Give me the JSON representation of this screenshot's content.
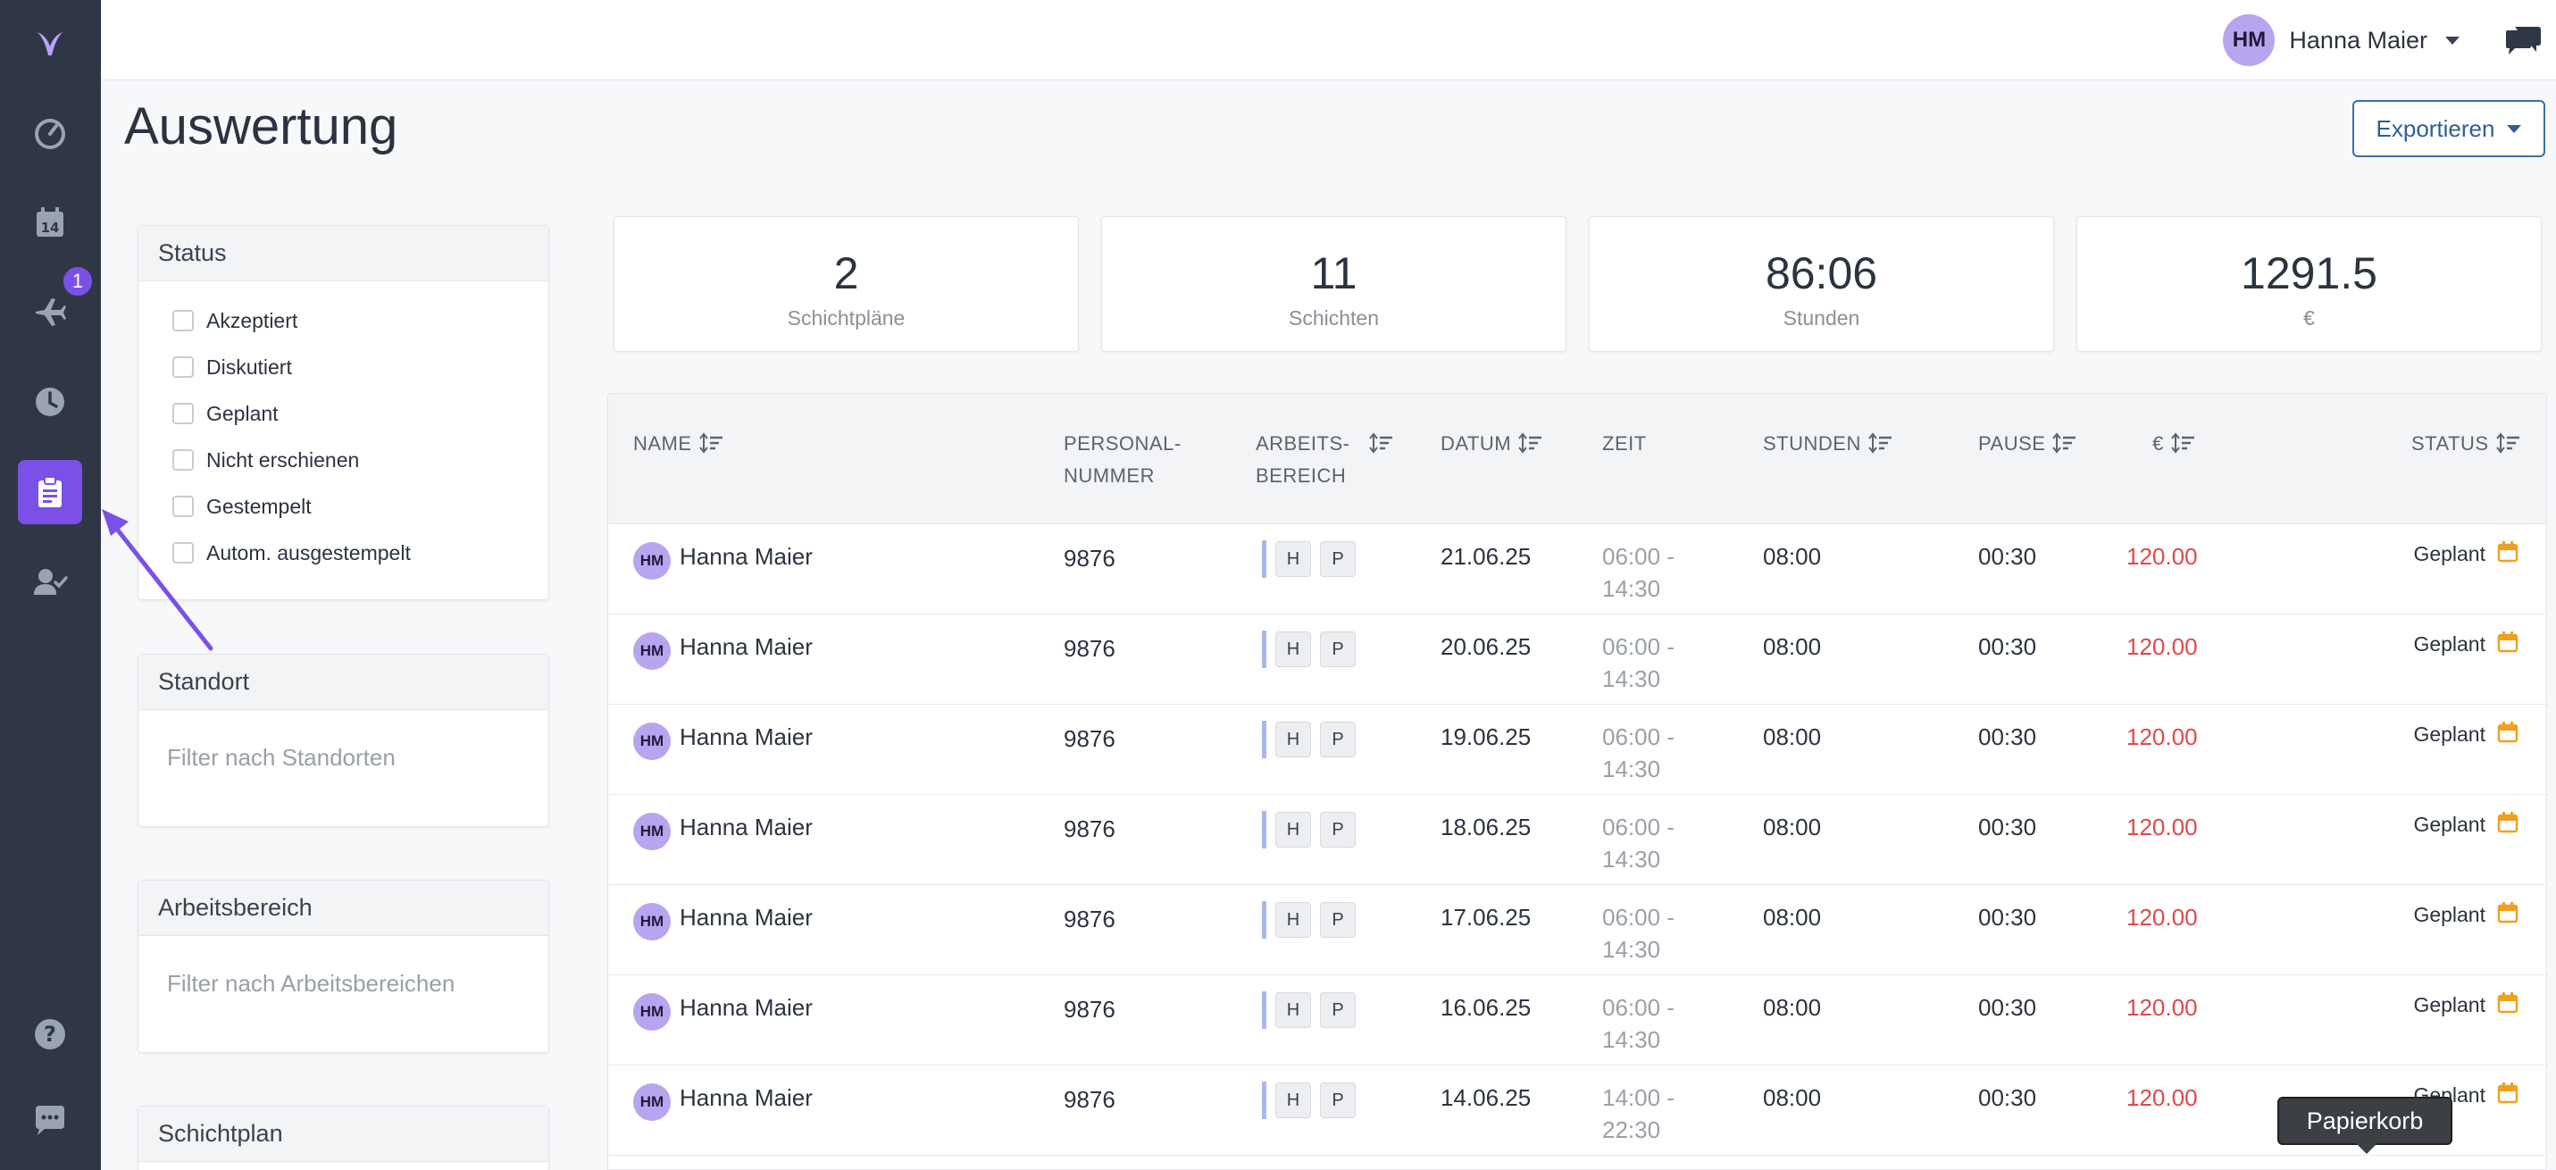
{
  "app": {
    "user_initials": "HM",
    "user_name": "Hanna Maier"
  },
  "sidebar": {
    "items": [
      {
        "name": "logo",
        "icon": "logo-icon"
      },
      {
        "name": "dashboard",
        "icon": "gauge-icon"
      },
      {
        "name": "calendar",
        "icon": "calendar-icon",
        "label": "14"
      },
      {
        "name": "absence",
        "icon": "plane-icon",
        "badge": "1"
      },
      {
        "name": "time",
        "icon": "clock-icon"
      },
      {
        "name": "reports",
        "icon": "clipboard-icon",
        "active": true
      },
      {
        "name": "users",
        "icon": "user-check-icon"
      },
      {
        "name": "help",
        "icon": "question-icon"
      },
      {
        "name": "chat",
        "icon": "chat-icon"
      }
    ]
  },
  "page": {
    "title": "Auswertung",
    "export_label": "Exportieren"
  },
  "filters": {
    "status": {
      "title": "Status",
      "options": [
        "Akzeptiert",
        "Diskutiert",
        "Geplant",
        "Nicht erschienen",
        "Gestempelt",
        "Autom. ausgestempelt"
      ]
    },
    "location": {
      "title": "Standort",
      "placeholder": "Filter nach Standorten"
    },
    "area": {
      "title": "Arbeitsbereich",
      "placeholder": "Filter nach Arbeitsbereichen"
    },
    "schedule": {
      "title": "Schichtplan"
    }
  },
  "stats": [
    {
      "value": "2",
      "label": "Schichtpläne"
    },
    {
      "value": "11",
      "label": "Schichten"
    },
    {
      "value": "86:06",
      "label": "Stunden"
    },
    {
      "value": "1291.5",
      "label": "€"
    }
  ],
  "table": {
    "headers": {
      "name": "NAME",
      "personal_1": "PERSONAL-",
      "personal_2": "NUMMER",
      "area_1": "ARBEITS-",
      "area_2": "BEREICH",
      "date": "DATUM",
      "time": "ZEIT",
      "hours": "STUNDEN",
      "pause": "PAUSE",
      "euro": "€",
      "status": "STATUS"
    },
    "rows": [
      {
        "initials": "HM",
        "name": "Hanna Maier",
        "number": "9876",
        "tag1": "H",
        "tag2": "P",
        "date": "21.06.25",
        "time_1": "06:00 -",
        "time_2": "14:30",
        "hours": "08:00",
        "pause": "00:30",
        "euro": "120.00",
        "status": "Geplant"
      },
      {
        "initials": "HM",
        "name": "Hanna Maier",
        "number": "9876",
        "tag1": "H",
        "tag2": "P",
        "date": "20.06.25",
        "time_1": "06:00 -",
        "time_2": "14:30",
        "hours": "08:00",
        "pause": "00:30",
        "euro": "120.00",
        "status": "Geplant"
      },
      {
        "initials": "HM",
        "name": "Hanna Maier",
        "number": "9876",
        "tag1": "H",
        "tag2": "P",
        "date": "19.06.25",
        "time_1": "06:00 -",
        "time_2": "14:30",
        "hours": "08:00",
        "pause": "00:30",
        "euro": "120.00",
        "status": "Geplant"
      },
      {
        "initials": "HM",
        "name": "Hanna Maier",
        "number": "9876",
        "tag1": "H",
        "tag2": "P",
        "date": "18.06.25",
        "time_1": "06:00 -",
        "time_2": "14:30",
        "hours": "08:00",
        "pause": "00:30",
        "euro": "120.00",
        "status": "Geplant"
      },
      {
        "initials": "HM",
        "name": "Hanna Maier",
        "number": "9876",
        "tag1": "H",
        "tag2": "P",
        "date": "17.06.25",
        "time_1": "06:00 -",
        "time_2": "14:30",
        "hours": "08:00",
        "pause": "00:30",
        "euro": "120.00",
        "status": "Geplant"
      },
      {
        "initials": "HM",
        "name": "Hanna Maier",
        "number": "9876",
        "tag1": "H",
        "tag2": "P",
        "date": "16.06.25",
        "time_1": "06:00 -",
        "time_2": "14:30",
        "hours": "08:00",
        "pause": "00:30",
        "euro": "120.00",
        "status": "Geplant"
      },
      {
        "initials": "HM",
        "name": "Hanna Maier",
        "number": "9876",
        "tag1": "H",
        "tag2": "P",
        "date": "14.06.25",
        "time_1": "14:00 -",
        "time_2": "22:30",
        "hours": "08:00",
        "pause": "00:30",
        "euro": "120.00",
        "status": "Geplant"
      }
    ]
  },
  "tooltip": {
    "text": "Papierkorb"
  },
  "colors": {
    "sidebar": "#2f3747",
    "accent": "#7b50e6",
    "price": "#e0494a",
    "export": "#2e5f94"
  }
}
